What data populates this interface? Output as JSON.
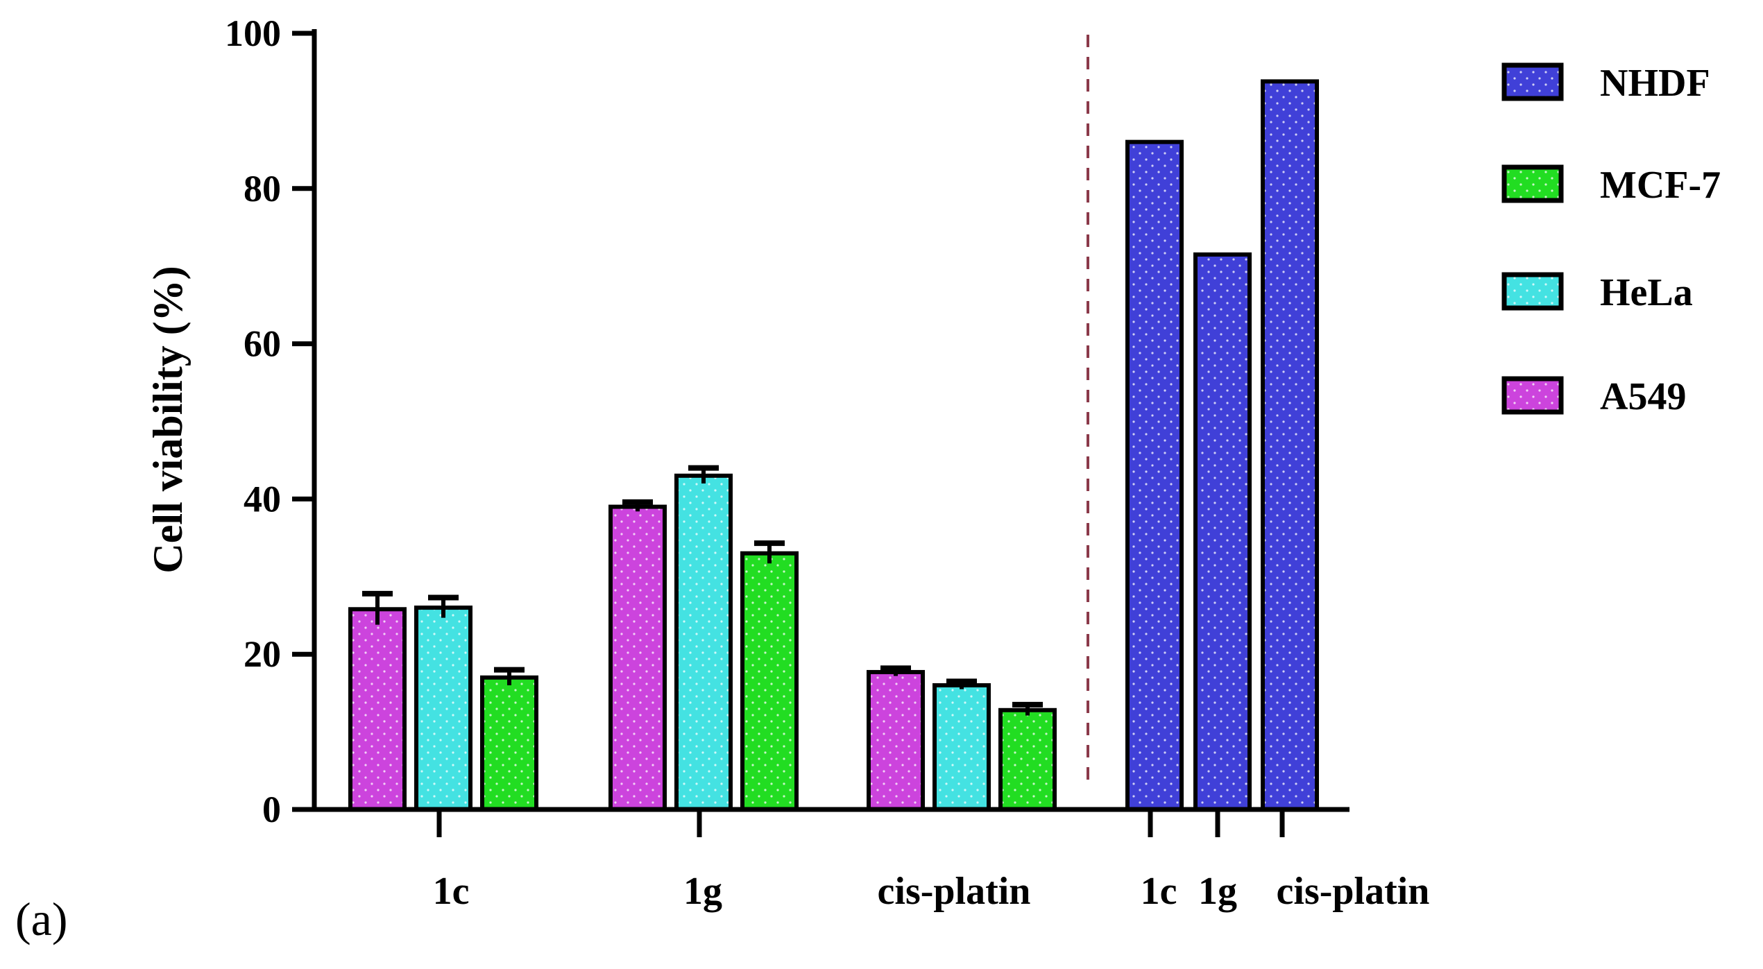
{
  "panel_label": "(a)",
  "chart_data": {
    "type": "bar",
    "title": "",
    "xlabel": "",
    "ylabel": "Cell viability (%)",
    "ylim": [
      0,
      100
    ],
    "yticks": [
      0,
      20,
      40,
      60,
      80,
      100
    ],
    "grid": false,
    "legend_position": "right",
    "groups": [
      {
        "category": "1c",
        "bars": [
          {
            "series": "A549",
            "value": 25.8,
            "error": 2.0
          },
          {
            "series": "HeLa",
            "value": 26.0,
            "error": 1.3
          },
          {
            "series": "MCF-7",
            "value": 17.0,
            "error": 1.0
          }
        ]
      },
      {
        "category": "1g",
        "bars": [
          {
            "series": "A549",
            "value": 39.0,
            "error": 0.6
          },
          {
            "series": "HeLa",
            "value": 43.0,
            "error": 1.0
          },
          {
            "series": "MCF-7",
            "value": 33.0,
            "error": 1.3
          }
        ]
      },
      {
        "category": "cis-platin",
        "bars": [
          {
            "series": "A549",
            "value": 17.7,
            "error": 0.5
          },
          {
            "series": "HeLa",
            "value": 16.0,
            "error": 0.5
          },
          {
            "series": "MCF-7",
            "value": 12.8,
            "error": 0.7
          }
        ]
      },
      {
        "category": "1c",
        "bars": [
          {
            "series": "NHDF",
            "value": 86.0,
            "error": 0
          }
        ]
      },
      {
        "category": "1g",
        "bars": [
          {
            "series": "NHDF",
            "value": 71.5,
            "error": 0
          }
        ]
      },
      {
        "category": "cis-platin",
        "bars": [
          {
            "series": "NHDF",
            "value": 93.8,
            "error": 0
          }
        ]
      }
    ],
    "series": [
      {
        "name": "NHDF",
        "color": "#4040d8"
      },
      {
        "name": "MCF-7",
        "color": "#22dd22"
      },
      {
        "name": "HeLa",
        "color": "#44e2e2"
      },
      {
        "name": "A549",
        "color": "#cc44dd"
      }
    ],
    "separator": {
      "style": "dashed",
      "color": "#8b3a4a"
    }
  }
}
